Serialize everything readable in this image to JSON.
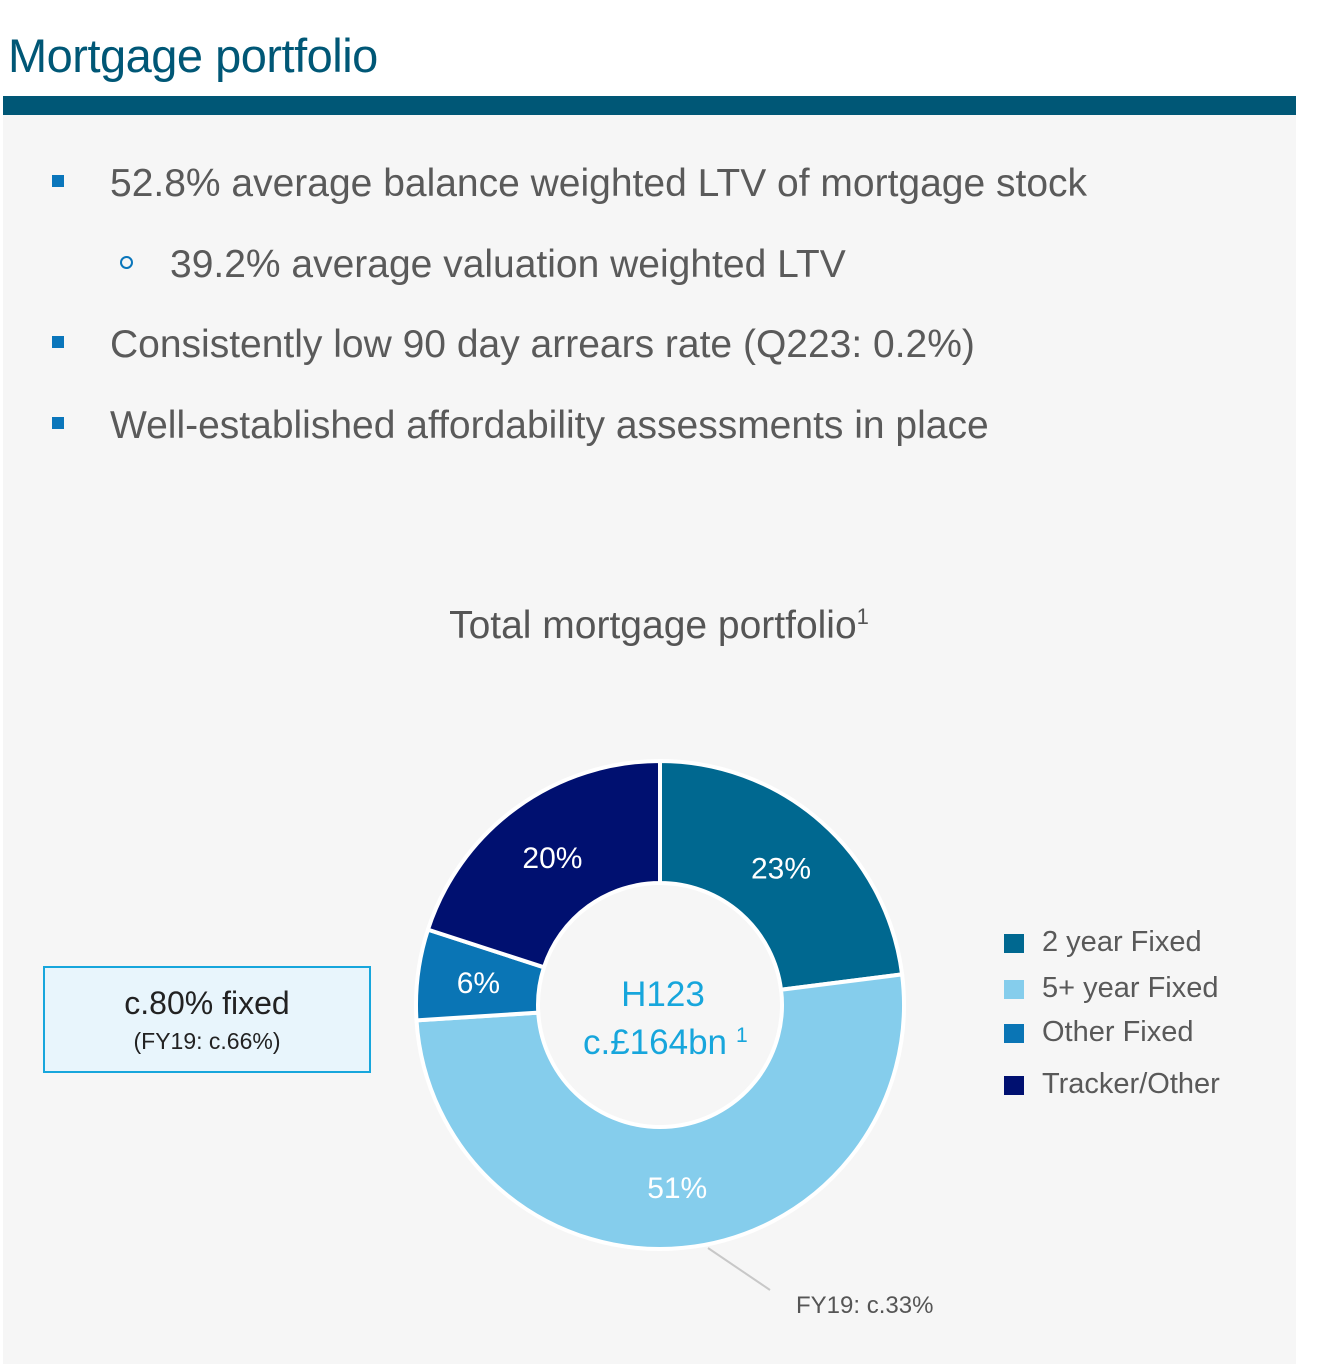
{
  "header": {
    "title": "Mortgage portfolio"
  },
  "bullets": [
    {
      "text": "52.8% average balance weighted LTV of mortgage stock",
      "level": 1
    },
    {
      "text": "39.2% average valuation weighted LTV",
      "level": 2
    },
    {
      "text": "Consistently low 90 day arrears rate (Q223: 0.2%)",
      "level": 1
    },
    {
      "text": "Well-established affordability assessments in place",
      "level": 1
    }
  ],
  "callout": {
    "main": "c.80% fixed",
    "sub": "(FY19: c.66%)"
  },
  "annotation": "FY19: c.33%",
  "chart_data": {
    "type": "pie",
    "title": "Total mortgage portfolio",
    "title_superscript": "1",
    "center_label": {
      "line1": "H123",
      "line2": "c.£164bn",
      "superscript": "1"
    },
    "categories": [
      "2 year Fixed",
      "5+ year Fixed",
      "Other Fixed",
      "Tracker/Other"
    ],
    "values": [
      23,
      51,
      6,
      20
    ],
    "data_labels": [
      "23%",
      "51%",
      "6%",
      "20%"
    ],
    "colors": [
      "#006890",
      "#85cdec",
      "#0a75b5",
      "#001070"
    ],
    "legend_position": "right"
  }
}
